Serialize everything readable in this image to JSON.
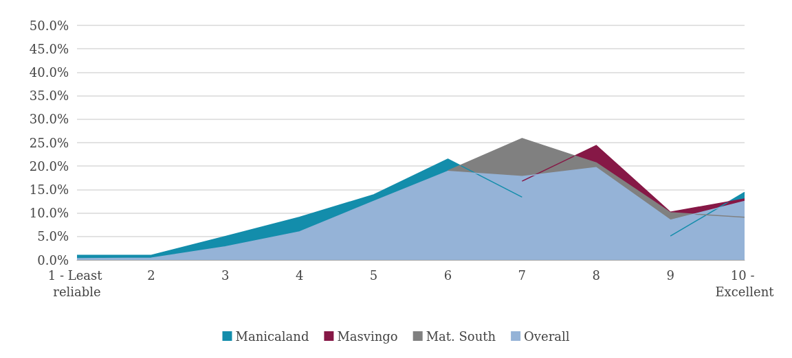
{
  "chart_data": {
    "type": "area",
    "categories": [
      "1 - Least reliable",
      "2",
      "3",
      "4",
      "5",
      "6",
      "7",
      "8",
      "9",
      "10 - Excellent"
    ],
    "series": [
      {
        "name": "Manicaland",
        "color": "#138dab",
        "values": [
          1.0,
          1.0,
          5.0,
          9.1,
          13.9,
          21.5,
          13.4,
          null,
          5.1,
          14.4
        ]
      },
      {
        "name": "Masvingo",
        "color": "#861846",
        "values": [
          null,
          null,
          null,
          null,
          null,
          null,
          16.8,
          24.4,
          10.2,
          13.0
        ]
      },
      {
        "name": "Mat. South",
        "color": "#808080",
        "values": [
          null,
          null,
          null,
          null,
          null,
          19.0,
          25.9,
          20.7,
          10.1,
          9.1
        ]
      },
      {
        "name": "Overall",
        "color": "#95b3d7",
        "values": [
          0.3,
          0.4,
          2.8,
          6.0,
          12.5,
          18.9,
          17.8,
          19.7,
          8.5,
          12.5
        ]
      }
    ],
    "ylim": [
      0,
      50
    ],
    "yticks": [
      {
        "value": 0,
        "label": "0.0%"
      },
      {
        "value": 5,
        "label": "5.0%"
      },
      {
        "value": 10,
        "label": "10.0%"
      },
      {
        "value": 15,
        "label": "15.0%"
      },
      {
        "value": 20,
        "label": "20.0%"
      },
      {
        "value": 25,
        "label": "25.0%"
      },
      {
        "value": 30,
        "label": "30.0%"
      },
      {
        "value": 35,
        "label": "35.0%"
      },
      {
        "value": 40,
        "label": "40.0%"
      },
      {
        "value": 45,
        "label": "45.0%"
      },
      {
        "value": 50,
        "label": "50.0%"
      }
    ],
    "grid": "y",
    "legend": "bottom",
    "marker": "none"
  }
}
